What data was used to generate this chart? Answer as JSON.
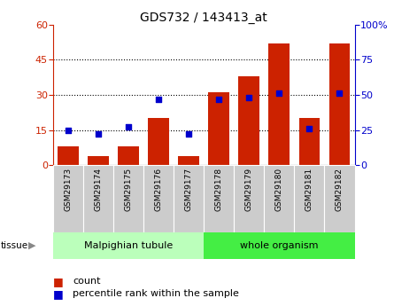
{
  "title": "GDS732 / 143413_at",
  "samples": [
    "GSM29173",
    "GSM29174",
    "GSM29175",
    "GSM29176",
    "GSM29177",
    "GSM29178",
    "GSM29179",
    "GSM29180",
    "GSM29181",
    "GSM29182"
  ],
  "counts": [
    8,
    4,
    8,
    20,
    4,
    31,
    38,
    52,
    20,
    52
  ],
  "percentiles": [
    25,
    22,
    27,
    47,
    22,
    47,
    48,
    51,
    26,
    51
  ],
  "left_ylim": [
    0,
    60
  ],
  "right_ylim": [
    0,
    100
  ],
  "left_yticks": [
    0,
    15,
    30,
    45,
    60
  ],
  "right_yticks": [
    0,
    25,
    50,
    75,
    100
  ],
  "right_yticklabels": [
    "0",
    "25",
    "50",
    "75",
    "100%"
  ],
  "bar_color": "#cc2200",
  "dot_color": "#0000cc",
  "tissue_groups": [
    {
      "label": "Malpighian tubule",
      "start": 0,
      "end": 5,
      "color": "#bbffbb"
    },
    {
      "label": "whole organism",
      "start": 5,
      "end": 10,
      "color": "#44ee44"
    }
  ],
  "tissue_label": "tissue",
  "legend_count_label": "count",
  "legend_pct_label": "percentile rank within the sample",
  "background_plot": "#ffffff",
  "xticklabel_bg": "#cccccc",
  "fig_bg": "#ffffff"
}
